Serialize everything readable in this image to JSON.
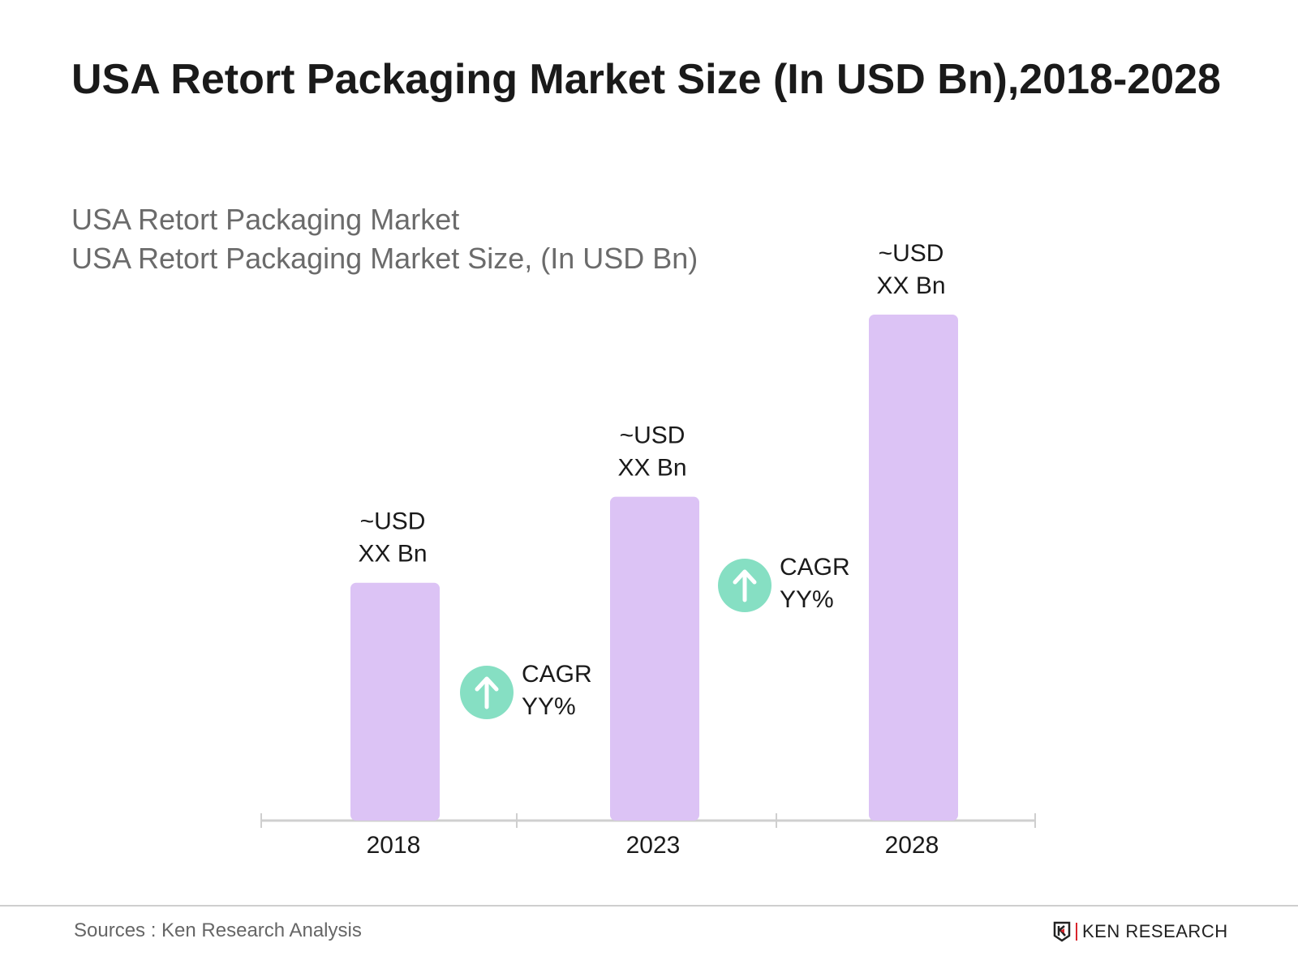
{
  "title": "USA Retort Packaging Market Size (In USD Bn),2018-2028",
  "subtitle_line1": "USA Retort Packaging Market",
  "subtitle_line2": "USA Retort Packaging Market Size, (In USD Bn)",
  "chart_data": {
    "type": "bar",
    "categories": [
      "2018",
      "2023",
      "2028"
    ],
    "values_relative": [
      0.47,
      0.64,
      1.0
    ],
    "data_labels": [
      [
        "~USD",
        "XX Bn"
      ],
      [
        "~USD",
        "XX Bn"
      ],
      [
        "~USD",
        "XX Bn"
      ]
    ],
    "annotations": [
      {
        "between": [
          "2018",
          "2023"
        ],
        "lines": [
          "CAGR",
          "YY%"
        ],
        "icon": "arrow-up-circle-icon"
      },
      {
        "between": [
          "2023",
          "2028"
        ],
        "lines": [
          "CAGR",
          "YY%"
        ],
        "icon": "arrow-up-circle-icon"
      }
    ],
    "bar_color": "#dcc3f5",
    "icon_color": "#86dfc3",
    "grid": false
  },
  "footer": {
    "source": "Sources : Ken Research Analysis",
    "logo_text": "KEN RESEARCH"
  }
}
